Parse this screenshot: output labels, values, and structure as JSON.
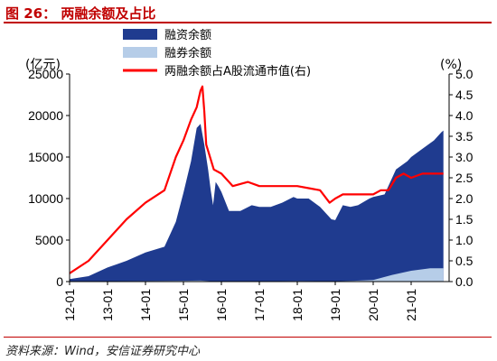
{
  "header": {
    "title": "图 26：  两融余额及占比"
  },
  "footer": {
    "source": "资料来源：Wind，安信证券研究中心"
  },
  "chart_data": {
    "type": "area",
    "title": "图 26：  两融余额及占比",
    "left_unit": "(亿元)",
    "right_unit": "(%)",
    "ylim_left": [
      0,
      25000
    ],
    "ylim_right": [
      0.0,
      5.0
    ],
    "y_ticks_left": [
      "0",
      "5000",
      "10000",
      "15000",
      "20000",
      "25000"
    ],
    "y_ticks_right": [
      "0.0",
      "0.5",
      "1.0",
      "1.5",
      "2.0",
      "2.5",
      "3.0",
      "3.5",
      "4.0",
      "4.5",
      "5.0"
    ],
    "x_ticks": [
      "12-01",
      "13-01",
      "14-01",
      "15-01",
      "16-01",
      "17-01",
      "18-01",
      "19-01",
      "20-01",
      "21-01"
    ],
    "legend": [
      "融资余额",
      "融券余额",
      "两融余额占A股流通市值(右)"
    ],
    "legend_placement": "top-center",
    "colors": {
      "financing": "#1f3b8f",
      "securities_lending": "#b6cde8",
      "ratio_line": "#ff0000",
      "title": "#c00000"
    },
    "series": [
      {
        "name": "融资余额",
        "axis": "left",
        "x": [
          2012.0,
          2012.5,
          2013.0,
          2013.5,
          2014.0,
          2014.5,
          2014.8,
          2015.0,
          2015.2,
          2015.35,
          2015.45,
          2015.55,
          2015.65,
          2015.72,
          2015.78,
          2015.85,
          2015.92,
          2016.0,
          2016.2,
          2016.5,
          2016.8,
          2017.0,
          2017.3,
          2017.6,
          2017.9,
          2018.0,
          2018.3,
          2018.6,
          2018.9,
          2019.0,
          2019.2,
          2019.4,
          2019.6,
          2019.9,
          2020.0,
          2020.3,
          2020.6,
          2020.9,
          2021.0,
          2021.3,
          2021.6,
          2021.8,
          2021.85
        ],
        "y": [
          300,
          650,
          1700,
          2500,
          3500,
          4200,
          7200,
          10700,
          14500,
          18500,
          19000,
          16500,
          13500,
          11000,
          9200,
          12000,
          11500,
          10800,
          8500,
          8500,
          9200,
          9000,
          9000,
          9500,
          10200,
          10000,
          10000,
          9000,
          7500,
          7400,
          9200,
          9000,
          9200,
          10000,
          10200,
          10500,
          13500,
          14500,
          15000,
          16000,
          17000,
          18000,
          18200
        ]
      },
      {
        "name": "融券余额",
        "axis": "left",
        "x": [
          2012.0,
          2013.0,
          2014.0,
          2015.0,
          2015.45,
          2015.7,
          2016.0,
          2017.0,
          2018.0,
          2019.0,
          2019.5,
          2020.0,
          2020.5,
          2021.0,
          2021.5,
          2021.85
        ],
        "y": [
          30,
          40,
          60,
          100,
          120,
          50,
          30,
          40,
          60,
          40,
          100,
          200,
          800,
          1300,
          1600,
          1600
        ]
      },
      {
        "name": "两融余额占A股流通市值(右)",
        "axis": "right",
        "x": [
          2012.0,
          2012.5,
          2013.0,
          2013.5,
          2014.0,
          2014.5,
          2014.8,
          2015.0,
          2015.2,
          2015.35,
          2015.45,
          2015.5,
          2015.55,
          2015.6,
          2015.7,
          2015.8,
          2016.0,
          2016.3,
          2016.7,
          2017.0,
          2017.5,
          2018.0,
          2018.3,
          2018.6,
          2018.85,
          2019.0,
          2019.2,
          2019.5,
          2019.8,
          2020.0,
          2020.2,
          2020.4,
          2020.6,
          2020.8,
          2021.0,
          2021.3,
          2021.6,
          2021.85
        ],
        "y": [
          0.2,
          0.5,
          1.0,
          1.5,
          1.9,
          2.2,
          3.0,
          3.4,
          3.9,
          4.2,
          4.6,
          4.7,
          4.1,
          3.3,
          3.0,
          2.7,
          2.6,
          2.3,
          2.4,
          2.3,
          2.3,
          2.3,
          2.25,
          2.2,
          1.9,
          2.0,
          2.1,
          2.1,
          2.1,
          2.1,
          2.2,
          2.2,
          2.5,
          2.6,
          2.5,
          2.6,
          2.6,
          2.6
        ]
      }
    ]
  }
}
